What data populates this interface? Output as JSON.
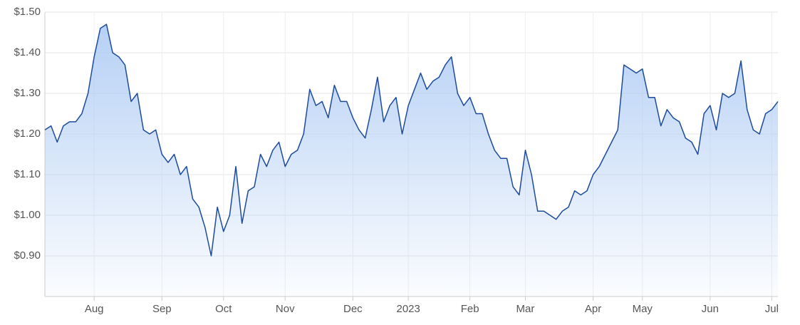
{
  "chart_data": {
    "type": "area_line",
    "categories": [
      null,
      null,
      null,
      null,
      null,
      null,
      null,
      null,
      "Aug",
      null,
      null,
      null,
      null,
      null,
      null,
      null,
      null,
      null,
      null,
      "Sep",
      null,
      null,
      null,
      null,
      null,
      null,
      null,
      null,
      null,
      "Oct",
      null,
      null,
      null,
      null,
      null,
      null,
      null,
      null,
      null,
      "Nov",
      null,
      null,
      null,
      null,
      null,
      null,
      null,
      null,
      null,
      null,
      "Dec",
      null,
      null,
      null,
      null,
      null,
      null,
      null,
      null,
      "2023",
      null,
      null,
      null,
      null,
      null,
      null,
      null,
      null,
      null,
      "Feb",
      null,
      null,
      null,
      null,
      null,
      null,
      null,
      null,
      "Mar",
      null,
      null,
      null,
      null,
      null,
      null,
      null,
      null,
      null,
      null,
      "Apr",
      null,
      null,
      null,
      null,
      null,
      null,
      null,
      "May",
      null,
      null,
      null,
      null,
      null,
      null,
      null,
      null,
      null,
      null,
      "Jun",
      null,
      null,
      null,
      null,
      null,
      null,
      null,
      null,
      null,
      "Jul",
      null
    ],
    "values": [
      1.21,
      1.22,
      1.18,
      1.22,
      1.23,
      1.23,
      1.25,
      1.3,
      1.39,
      1.46,
      1.47,
      1.4,
      1.39,
      1.37,
      1.28,
      1.3,
      1.21,
      1.2,
      1.21,
      1.15,
      1.13,
      1.15,
      1.1,
      1.12,
      1.04,
      1.02,
      0.97,
      0.9,
      1.02,
      0.96,
      1.0,
      1.12,
      0.98,
      1.06,
      1.07,
      1.15,
      1.12,
      1.16,
      1.18,
      1.12,
      1.15,
      1.16,
      1.2,
      1.31,
      1.27,
      1.28,
      1.24,
      1.32,
      1.28,
      1.28,
      1.24,
      1.21,
      1.19,
      1.26,
      1.34,
      1.23,
      1.27,
      1.29,
      1.2,
      1.27,
      1.31,
      1.35,
      1.31,
      1.33,
      1.34,
      1.37,
      1.39,
      1.3,
      1.27,
      1.29,
      1.25,
      1.25,
      1.2,
      1.16,
      1.14,
      1.14,
      1.07,
      1.05,
      1.16,
      1.1,
      1.01,
      1.01,
      1.0,
      0.99,
      1.01,
      1.02,
      1.06,
      1.05,
      1.06,
      1.1,
      1.12,
      1.15,
      1.18,
      1.21,
      1.37,
      1.36,
      1.35,
      1.36,
      1.29,
      1.29,
      1.22,
      1.26,
      1.24,
      1.23,
      1.19,
      1.18,
      1.15,
      1.25,
      1.27,
      1.21,
      1.3,
      1.29,
      1.3,
      1.38,
      1.26,
      1.21,
      1.2,
      1.25,
      1.26,
      1.28
    ],
    "color": "#1d4b9b",
    "area_color": "#a9c8f3",
    "ylim": [
      0.8,
      1.5
    ],
    "yticks": [
      {
        "value": 0.9,
        "label": "$0.90"
      },
      {
        "value": 1.0,
        "label": "$1.00"
      },
      {
        "value": 1.1,
        "label": "$1.10"
      },
      {
        "value": 1.2,
        "label": "$1.20"
      },
      {
        "value": 1.3,
        "label": "$1.30"
      },
      {
        "value": 1.4,
        "label": "$1.40"
      },
      {
        "value": 1.5,
        "label": "$1.50"
      }
    ],
    "grid": true
  }
}
